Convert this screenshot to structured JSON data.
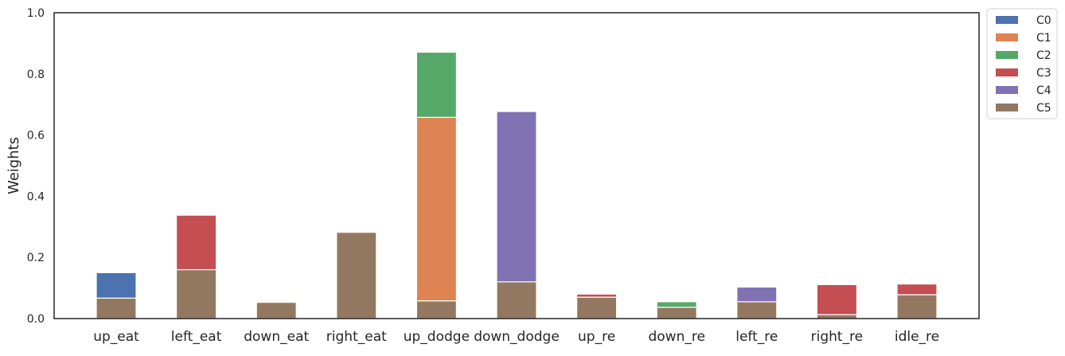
{
  "chart_data": {
    "type": "bar",
    "stacked": true,
    "title": "",
    "xlabel": "",
    "ylabel": "Weights",
    "ylim": [
      0,
      1.0
    ],
    "yticks": [
      0.0,
      0.2,
      0.4,
      0.6,
      0.8,
      1.0
    ],
    "ytick_labels": [
      "0.0",
      "0.2",
      "0.4",
      "0.6",
      "0.8",
      "1.0"
    ],
    "grid": false,
    "legend_position": "outside top-right",
    "categories": [
      "up_eat",
      "left_eat",
      "down_eat",
      "right_eat",
      "up_dodge",
      "down_dodge",
      "up_re",
      "down_re",
      "left_re",
      "right_re",
      "idle_re"
    ],
    "series": [
      {
        "name": "C0",
        "color": "#4c72b0",
        "values": [
          0.083,
          0,
          0,
          0,
          0,
          0,
          0,
          0,
          0,
          0,
          0
        ]
      },
      {
        "name": "C1",
        "color": "#dd8452",
        "values": [
          0,
          0,
          0,
          0,
          0.6,
          0,
          0,
          0,
          0,
          0,
          0
        ]
      },
      {
        "name": "C2",
        "color": "#55a868",
        "values": [
          0,
          0,
          0,
          0,
          0.213,
          0,
          0,
          0.018,
          0,
          0,
          0
        ]
      },
      {
        "name": "C3",
        "color": "#c44e52",
        "values": [
          0,
          0.178,
          0,
          0,
          0,
          0,
          0.01,
          0,
          0,
          0.098,
          0.035
        ]
      },
      {
        "name": "C4",
        "color": "#8172b3",
        "values": [
          0,
          0,
          0,
          0,
          0,
          0.557,
          0,
          0,
          0.048,
          0,
          0
        ]
      },
      {
        "name": "C5",
        "color": "#937860",
        "values": [
          0.067,
          0.16,
          0.053,
          0.282,
          0.058,
          0.12,
          0.07,
          0.037,
          0.055,
          0.013,
          0.078
        ]
      }
    ]
  }
}
